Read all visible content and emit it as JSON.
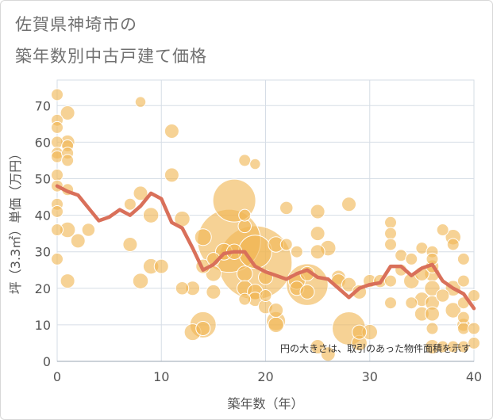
{
  "title_line1": "佐賀県神埼市の",
  "title_line2": "築年数別中古戸建て価格",
  "chart_data": {
    "type": "scatter",
    "title": "佐賀県神埼市の築年数別中古戸建て価格",
    "xlabel": "築年数（年）",
    "ylabel": "坪（3.3㎡）単価（万円）",
    "xlim": [
      0,
      40
    ],
    "ylim": [
      0,
      77
    ],
    "xticks": [
      0,
      10,
      20,
      30,
      40
    ],
    "yticks": [
      0,
      10,
      20,
      30,
      40,
      50,
      60,
      70
    ],
    "grid": true,
    "annotation": "円の大きさは、取引のあった物件面積を示す",
    "colors": {
      "bubble": "#f0b654",
      "line": "#d9705a",
      "grid": "#d6dde6"
    },
    "series": [
      {
        "kind": "bubbles",
        "points": [
          {
            "x": 0,
            "y": 73,
            "s": 1
          },
          {
            "x": 0,
            "y": 66,
            "s": 1
          },
          {
            "x": 0,
            "y": 64,
            "s": 1
          },
          {
            "x": 0,
            "y": 60,
            "s": 1
          },
          {
            "x": 0,
            "y": 57,
            "s": 1
          },
          {
            "x": 0,
            "y": 56,
            "s": 1
          },
          {
            "x": 0,
            "y": 51,
            "s": 1
          },
          {
            "x": 0,
            "y": 48,
            "s": 1
          },
          {
            "x": 0,
            "y": 43,
            "s": 1
          },
          {
            "x": 0,
            "y": 41,
            "s": 1
          },
          {
            "x": 0,
            "y": 36,
            "s": 1
          },
          {
            "x": 0,
            "y": 28,
            "s": 1
          },
          {
            "x": 1,
            "y": 68,
            "s": 1.2
          },
          {
            "x": 1,
            "y": 60,
            "s": 1.2
          },
          {
            "x": 1,
            "y": 59,
            "s": 1
          },
          {
            "x": 1,
            "y": 57,
            "s": 1
          },
          {
            "x": 1,
            "y": 55,
            "s": 1
          },
          {
            "x": 1,
            "y": 47,
            "s": 1
          },
          {
            "x": 1,
            "y": 36,
            "s": 1.3
          },
          {
            "x": 1,
            "y": 22,
            "s": 1.2
          },
          {
            "x": 2,
            "y": 33,
            "s": 1.2
          },
          {
            "x": 3,
            "y": 36,
            "s": 1.1
          },
          {
            "x": 7,
            "y": 43,
            "s": 1
          },
          {
            "x": 7,
            "y": 32,
            "s": 1.2
          },
          {
            "x": 8,
            "y": 71,
            "s": 0.9
          },
          {
            "x": 8,
            "y": 46,
            "s": 1.2
          },
          {
            "x": 8,
            "y": 22,
            "s": 1.3
          },
          {
            "x": 9,
            "y": 40,
            "s": 1.3
          },
          {
            "x": 9,
            "y": 26,
            "s": 1.3
          },
          {
            "x": 10,
            "y": 26,
            "s": 1.2
          },
          {
            "x": 11,
            "y": 63,
            "s": 1.2
          },
          {
            "x": 11,
            "y": 51,
            "s": 1.2
          },
          {
            "x": 12,
            "y": 39,
            "s": 1.3
          },
          {
            "x": 12,
            "y": 20,
            "s": 1.1
          },
          {
            "x": 13,
            "y": 8,
            "s": 1.4
          },
          {
            "x": 13,
            "y": 20,
            "s": 1.2
          },
          {
            "x": 14,
            "y": 34,
            "s": 1.4
          },
          {
            "x": 14,
            "y": 10,
            "s": 2.2
          },
          {
            "x": 14,
            "y": 9,
            "s": 1.2
          },
          {
            "x": 14,
            "y": 26,
            "s": 1.2
          },
          {
            "x": 15,
            "y": 24,
            "s": 1.3
          },
          {
            "x": 15,
            "y": 19,
            "s": 1.2
          },
          {
            "x": 15,
            "y": 28,
            "s": 1.1
          },
          {
            "x": 16,
            "y": 30,
            "s": 1.4
          },
          {
            "x": 16.5,
            "y": 33,
            "s": 5.3
          },
          {
            "x": 17,
            "y": 44,
            "s": 3.6
          },
          {
            "x": 17,
            "y": 30,
            "s": 1.3
          },
          {
            "x": 18,
            "y": 55,
            "s": 1
          },
          {
            "x": 18,
            "y": 40,
            "s": 1
          },
          {
            "x": 18,
            "y": 37,
            "s": 1.1
          },
          {
            "x": 18,
            "y": 24,
            "s": 1.3
          },
          {
            "x": 18,
            "y": 20,
            "s": 1.3
          },
          {
            "x": 18,
            "y": 17,
            "s": 1
          },
          {
            "x": 19,
            "y": 54,
            "s": 0.9
          },
          {
            "x": 19,
            "y": 27,
            "s": 6.2
          },
          {
            "x": 19,
            "y": 30,
            "s": 2.8
          },
          {
            "x": 19,
            "y": 19,
            "s": 1.3
          },
          {
            "x": 19,
            "y": 17,
            "s": 1.2
          },
          {
            "x": 20,
            "y": 23,
            "s": 1.2
          },
          {
            "x": 20,
            "y": 15,
            "s": 1.2
          },
          {
            "x": 20,
            "y": 18,
            "s": 1
          },
          {
            "x": 21,
            "y": 32,
            "s": 1.3
          },
          {
            "x": 21,
            "y": 14,
            "s": 1.2
          },
          {
            "x": 21,
            "y": 11,
            "s": 1.6
          },
          {
            "x": 21,
            "y": 10,
            "s": 1.3
          },
          {
            "x": 22,
            "y": 42,
            "s": 1.1
          },
          {
            "x": 22,
            "y": 32,
            "s": 1
          },
          {
            "x": 23,
            "y": 30,
            "s": 1
          },
          {
            "x": 23,
            "y": 22,
            "s": 1.4
          },
          {
            "x": 23,
            "y": 20,
            "s": 1.2
          },
          {
            "x": 24,
            "y": 21,
            "s": 3.5
          },
          {
            "x": 24,
            "y": 24,
            "s": 1.2
          },
          {
            "x": 24,
            "y": 19,
            "s": 1.2
          },
          {
            "x": 25,
            "y": 41,
            "s": 1.2
          },
          {
            "x": 25,
            "y": 35,
            "s": 1.2
          },
          {
            "x": 25,
            "y": 30,
            "s": 1.2
          },
          {
            "x": 25,
            "y": 4,
            "s": 1.2
          },
          {
            "x": 26,
            "y": 31,
            "s": 1.3
          },
          {
            "x": 26,
            "y": 2,
            "s": 1.2
          },
          {
            "x": 27,
            "y": 23,
            "s": 1.2
          },
          {
            "x": 27,
            "y": 22,
            "s": 1.2
          },
          {
            "x": 28,
            "y": 43,
            "s": 1.2
          },
          {
            "x": 28,
            "y": 21,
            "s": 1.2
          },
          {
            "x": 28,
            "y": 9,
            "s": 2.8
          },
          {
            "x": 29,
            "y": 19,
            "s": 1.2
          },
          {
            "x": 29,
            "y": 8,
            "s": 1.2
          },
          {
            "x": 29,
            "y": 5,
            "s": 1.3
          },
          {
            "x": 30,
            "y": 22,
            "s": 1.1
          },
          {
            "x": 30,
            "y": 8,
            "s": 1.3
          },
          {
            "x": 31,
            "y": 22,
            "s": 1.1
          },
          {
            "x": 32,
            "y": 38,
            "s": 1
          },
          {
            "x": 32,
            "y": 35,
            "s": 1
          },
          {
            "x": 32,
            "y": 32,
            "s": 1
          },
          {
            "x": 32,
            "y": 22,
            "s": 1
          },
          {
            "x": 32,
            "y": 16,
            "s": 1
          },
          {
            "x": 33,
            "y": 29,
            "s": 1
          },
          {
            "x": 33,
            "y": 25,
            "s": 1
          },
          {
            "x": 34,
            "y": 28,
            "s": 1
          },
          {
            "x": 34,
            "y": 22,
            "s": 1.3
          },
          {
            "x": 34,
            "y": 16,
            "s": 1
          },
          {
            "x": 35,
            "y": 31,
            "s": 1
          },
          {
            "x": 35,
            "y": 24,
            "s": 1.2
          },
          {
            "x": 35,
            "y": 17,
            "s": 1.2
          },
          {
            "x": 35,
            "y": 13,
            "s": 1.2
          },
          {
            "x": 36,
            "y": 30,
            "s": 1
          },
          {
            "x": 36,
            "y": 28,
            "s": 1
          },
          {
            "x": 36,
            "y": 26,
            "s": 1.1
          },
          {
            "x": 36,
            "y": 24,
            "s": 1.3
          },
          {
            "x": 36,
            "y": 20,
            "s": 1.3
          },
          {
            "x": 36,
            "y": 16,
            "s": 1.2
          },
          {
            "x": 36,
            "y": 13,
            "s": 1.2
          },
          {
            "x": 36,
            "y": 9,
            "s": 1
          },
          {
            "x": 36,
            "y": 4,
            "s": 1.2
          },
          {
            "x": 37,
            "y": 36,
            "s": 1
          },
          {
            "x": 37,
            "y": 18,
            "s": 1.1
          },
          {
            "x": 37,
            "y": 4,
            "s": 1
          },
          {
            "x": 38,
            "y": 34,
            "s": 1.3
          },
          {
            "x": 38,
            "y": 32,
            "s": 1
          },
          {
            "x": 38,
            "y": 20,
            "s": 1.3
          },
          {
            "x": 38,
            "y": 14,
            "s": 1.3
          },
          {
            "x": 38,
            "y": 4,
            "s": 1
          },
          {
            "x": 39,
            "y": 28,
            "s": 1
          },
          {
            "x": 39,
            "y": 22,
            "s": 1
          },
          {
            "x": 39,
            "y": 16,
            "s": 1
          },
          {
            "x": 39,
            "y": 12,
            "s": 1
          },
          {
            "x": 39,
            "y": 10,
            "s": 1.1
          },
          {
            "x": 39,
            "y": 9,
            "s": 1
          },
          {
            "x": 39,
            "y": 4,
            "s": 1
          },
          {
            "x": 40,
            "y": 18,
            "s": 1
          },
          {
            "x": 40,
            "y": 9,
            "s": 1
          },
          {
            "x": 40,
            "y": 5,
            "s": 1
          }
        ]
      },
      {
        "kind": "line",
        "x": [
          0,
          1,
          2,
          3,
          4,
          5,
          6,
          7,
          8,
          9,
          10,
          11,
          12,
          13,
          14,
          15,
          16,
          17,
          18,
          19,
          20,
          21,
          22,
          23,
          24,
          25,
          26,
          27,
          28,
          29,
          30,
          31,
          32,
          33,
          34,
          35,
          36,
          37,
          38,
          39,
          40
        ],
        "values": [
          48,
          46.5,
          45.5,
          42,
          38.5,
          39.5,
          41.5,
          40,
          42.5,
          46,
          44.5,
          38,
          36.5,
          31,
          25,
          26.5,
          29.5,
          30,
          30,
          26,
          24.5,
          23.5,
          22.5,
          24,
          25,
          23,
          22.5,
          20,
          17.5,
          20,
          21,
          21.5,
          26,
          26,
          23.5,
          25.5,
          26.5,
          22,
          20,
          18.5,
          14.5
        ]
      }
    ]
  }
}
